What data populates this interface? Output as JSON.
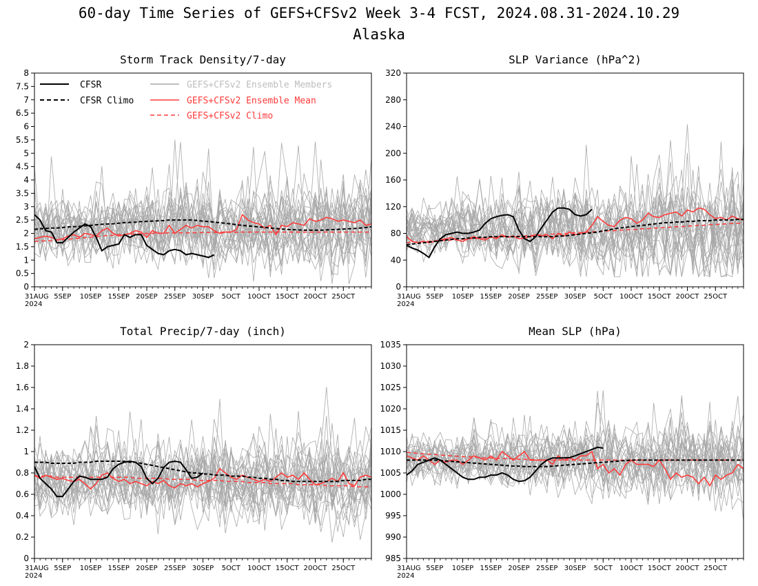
{
  "figure": {
    "title_line1": "60-day Time Series of GEFS+CFSv2 Week 3-4 FCST, 2024.08.31-2024.10.29",
    "title_line2": "Alaska"
  },
  "legend": {
    "cfsr": "CFSR",
    "cfsr_climo": "CFSR Climo",
    "members": "GEFS+CFSv2 Ensemble Members",
    "mean": "GEFS+CFSv2 Ensemble Mean",
    "climo": "GEFS+CFSv2 Climo"
  },
  "colors": {
    "cfsr": "#000000",
    "members": "#a8a8a8",
    "mean": "#ff3b3b",
    "members_legend_text": "#bdbdbd"
  },
  "x_axis": {
    "ticks": [
      "31AUG",
      "5SEP",
      "10SEP",
      "15SEP",
      "20SEP",
      "25SEP",
      "30SEP",
      "5OCT",
      "10OCT",
      "15OCT",
      "20OCT",
      "25OCT"
    ],
    "year": "2024"
  },
  "chart_data": [
    {
      "type": "line",
      "title": "Storm Track Density/7-day",
      "ylim": [
        0,
        8
      ],
      "yticks": [
        "0",
        "0.5",
        "1",
        "1.5",
        "2",
        "2.5",
        "3",
        "3.5",
        "4",
        "4.5",
        "5",
        "5.5",
        "6",
        "6.5",
        "7",
        "7.5",
        "8"
      ],
      "ensemble_mean": [
        1.8,
        1.85,
        1.9,
        1.85,
        1.75,
        1.8,
        1.9,
        1.95,
        1.85,
        2.0,
        1.95,
        1.9,
        2.1,
        2.2,
        2.0,
        1.9,
        1.95,
        2.0,
        2.1,
        2.05,
        1.85,
        2.1,
        2.0,
        2.0,
        2.3,
        2.0,
        2.15,
        2.3,
        2.2,
        2.3,
        2.25,
        2.25,
        2.1,
        2.0,
        2.05,
        2.05,
        2.15,
        2.7,
        2.5,
        2.4,
        2.35,
        2.2,
        2.3,
        1.95,
        2.3,
        2.25,
        2.4,
        2.35,
        2.3,
        2.55,
        2.45,
        2.5,
        2.6,
        2.55,
        2.45,
        2.5,
        2.45,
        2.4,
        2.5,
        2.3,
        2.35
      ],
      "cfsr": [
        2.7,
        2.5,
        2.1,
        2.05,
        1.65,
        1.65,
        1.85,
        2.05,
        2.2,
        2.35,
        2.25,
        1.85,
        1.35,
        1.5,
        1.55,
        1.6,
        1.95,
        1.85,
        1.95,
        1.95,
        1.55,
        1.4,
        1.25,
        1.2,
        1.35,
        1.4,
        1.35,
        1.2,
        1.25,
        1.2,
        1.15,
        1.1,
        1.2
      ],
      "cfsr_climo": [
        2.15,
        2.17,
        2.18,
        2.2,
        2.2,
        2.22,
        2.24,
        2.25,
        2.26,
        2.28,
        2.3,
        2.32,
        2.34,
        2.35,
        2.36,
        2.38,
        2.4,
        2.41,
        2.42,
        2.44,
        2.45,
        2.46,
        2.47,
        2.48,
        2.5,
        2.5,
        2.5,
        2.5,
        2.5,
        2.48,
        2.46,
        2.44,
        2.42,
        2.4,
        2.38,
        2.35,
        2.32,
        2.3,
        2.28,
        2.26,
        2.24,
        2.22,
        2.2,
        2.18,
        2.16,
        2.15,
        2.14,
        2.13,
        2.12,
        2.12,
        2.12,
        2.12,
        2.13,
        2.14,
        2.15,
        2.16,
        2.17,
        2.18,
        2.2,
        2.22,
        2.25
      ],
      "model_climo": [
        1.7,
        1.71,
        1.72,
        1.73,
        1.75,
        1.76,
        1.78,
        1.8,
        1.82,
        1.84,
        1.86,
        1.88,
        1.9,
        1.92,
        1.93,
        1.95,
        1.96,
        1.97,
        1.98,
        1.99,
        2.0,
        2.0,
        2.01,
        2.01,
        2.02,
        2.02,
        2.02,
        2.02,
        2.02,
        2.03,
        2.03,
        2.03,
        2.03,
        2.04,
        2.04,
        2.04,
        2.04,
        2.05,
        2.05,
        2.05,
        2.05,
        2.05,
        2.05,
        2.05,
        2.05,
        2.05,
        2.05,
        2.05,
        2.05,
        2.05,
        2.05,
        2.05,
        2.05,
        2.05,
        2.05,
        2.05,
        2.05,
        2.05,
        2.05,
        2.05,
        2.05
      ],
      "members_base": 2.1,
      "members_spread": 0.75,
      "members_spread_growth": 0.45,
      "members_floor": 0
    },
    {
      "type": "line",
      "title": "SLP Variance (hPa^2)",
      "ylim": [
        0,
        320
      ],
      "yticks": [
        "0",
        "40",
        "80",
        "120",
        "160",
        "200",
        "240",
        "280",
        "320"
      ],
      "ensemble_mean": [
        75,
        68,
        66,
        68,
        66,
        68,
        70,
        72,
        74,
        70,
        68,
        72,
        75,
        72,
        70,
        75,
        72,
        78,
        74,
        76,
        72,
        73,
        75,
        78,
        76,
        78,
        72,
        80,
        76,
        82,
        78,
        80,
        82,
        92,
        105,
        98,
        92,
        90,
        100,
        104,
        102,
        95,
        100,
        110,
        105,
        104,
        108,
        110,
        112,
        106,
        115,
        112,
        118,
        116,
        108,
        102,
        104,
        100,
        106,
        102,
        100
      ],
      "cfsr": [
        62,
        58,
        55,
        50,
        44,
        60,
        72,
        78,
        80,
        82,
        80,
        80,
        82,
        85,
        95,
        102,
        105,
        107,
        108,
        105,
        85,
        72,
        68,
        75,
        88,
        100,
        112,
        118,
        118,
        116,
        108,
        106,
        108,
        116
      ],
      "cfsr_climo": [
        63,
        64,
        65,
        66,
        67,
        68,
        69,
        70,
        71,
        72,
        72,
        73,
        73,
        74,
        74,
        75,
        75,
        75,
        75,
        75,
        75,
        75,
        75,
        75,
        75,
        75,
        75,
        76,
        76,
        77,
        78,
        79,
        80,
        81,
        82,
        84,
        85,
        87,
        88,
        89,
        90,
        91,
        92,
        93,
        94,
        95,
        96,
        96,
        97,
        97,
        98,
        98,
        99,
        99,
        99,
        100,
        100,
        100,
        100,
        101,
        101
      ],
      "model_climo": [
        66,
        67,
        67,
        68,
        68,
        69,
        69,
        70,
        70,
        71,
        71,
        72,
        72,
        73,
        73,
        74,
        74,
        75,
        75,
        75,
        76,
        76,
        77,
        77,
        78,
        78,
        79,
        79,
        80,
        80,
        81,
        81,
        82,
        82,
        83,
        83,
        84,
        84,
        85,
        85,
        86,
        86,
        87,
        87,
        88,
        88,
        89,
        89,
        90,
        90,
        91,
        91,
        92,
        92,
        93,
        93,
        94,
        94,
        95,
        95,
        96
      ],
      "members_base": 85,
      "members_spread": 25,
      "members_spread_growth": 35,
      "members_floor": 15
    },
    {
      "type": "line",
      "title": "Total Precip/7-day (inch)",
      "ylim": [
        0,
        2
      ],
      "yticks": [
        "0",
        "0.2",
        "0.4",
        "0.6",
        "0.8",
        "1",
        "1.2",
        "1.4",
        "1.6",
        "1.8",
        "2"
      ],
      "ensemble_mean": [
        0.78,
        0.75,
        0.78,
        0.76,
        0.74,
        0.75,
        0.73,
        0.72,
        0.74,
        0.7,
        0.65,
        0.7,
        0.78,
        0.8,
        0.75,
        0.72,
        0.74,
        0.7,
        0.72,
        0.7,
        0.68,
        0.72,
        0.7,
        0.73,
        0.68,
        0.66,
        0.7,
        0.68,
        0.7,
        0.67,
        0.7,
        0.72,
        0.75,
        0.84,
        0.8,
        0.76,
        0.74,
        0.78,
        0.76,
        0.74,
        0.72,
        0.74,
        0.72,
        0.76,
        0.8,
        0.76,
        0.78,
        0.74,
        0.8,
        0.74,
        0.69,
        0.7,
        0.72,
        0.75,
        0.72,
        0.8,
        0.7,
        0.68,
        0.76,
        0.78,
        0.76
      ],
      "cfsr": [
        0.86,
        0.75,
        0.7,
        0.65,
        0.58,
        0.58,
        0.65,
        0.72,
        0.77,
        0.76,
        0.74,
        0.74,
        0.74,
        0.76,
        0.84,
        0.88,
        0.9,
        0.91,
        0.9,
        0.86,
        0.75,
        0.7,
        0.75,
        0.85,
        0.9,
        0.91,
        0.9,
        0.83,
        0.75,
        0.76,
        0.8
      ],
      "cfsr_climo": [
        0.9,
        0.9,
        0.9,
        0.89,
        0.89,
        0.89,
        0.89,
        0.89,
        0.9,
        0.9,
        0.9,
        0.91,
        0.91,
        0.91,
        0.91,
        0.91,
        0.91,
        0.9,
        0.9,
        0.89,
        0.88,
        0.87,
        0.86,
        0.85,
        0.84,
        0.83,
        0.82,
        0.81,
        0.8,
        0.8,
        0.79,
        0.79,
        0.78,
        0.78,
        0.78,
        0.77,
        0.77,
        0.77,
        0.76,
        0.76,
        0.75,
        0.75,
        0.74,
        0.74,
        0.73,
        0.73,
        0.72,
        0.72,
        0.72,
        0.72,
        0.72,
        0.72,
        0.72,
        0.72,
        0.72,
        0.73,
        0.73,
        0.73,
        0.73,
        0.74,
        0.74
      ],
      "model_climo": [
        0.77,
        0.77,
        0.77,
        0.77,
        0.76,
        0.76,
        0.76,
        0.76,
        0.76,
        0.76,
        0.76,
        0.76,
        0.76,
        0.76,
        0.76,
        0.76,
        0.76,
        0.76,
        0.75,
        0.75,
        0.75,
        0.75,
        0.75,
        0.75,
        0.74,
        0.74,
        0.74,
        0.74,
        0.74,
        0.73,
        0.73,
        0.73,
        0.73,
        0.73,
        0.72,
        0.72,
        0.72,
        0.72,
        0.71,
        0.71,
        0.71,
        0.71,
        0.7,
        0.7,
        0.7,
        0.7,
        0.7,
        0.69,
        0.69,
        0.69,
        0.69,
        0.69,
        0.68,
        0.68,
        0.68,
        0.68,
        0.68,
        0.67,
        0.67,
        0.67,
        0.67
      ],
      "members_base": 0.74,
      "members_spread": 0.22,
      "members_spread_growth": 0.06,
      "members_floor": 0.1
    },
    {
      "type": "line",
      "title": "Mean SLP (hPa)",
      "ylim": [
        985,
        1035
      ],
      "yticks": [
        "985",
        "990",
        "995",
        "1000",
        "1005",
        "1010",
        "1015",
        "1020",
        "1025",
        "1030",
        "1035"
      ],
      "ensemble_mean": [
        1009,
        1008.5,
        1008,
        1009,
        1008,
        1007,
        1008,
        1007.5,
        1008,
        1008,
        1007,
        1008,
        1009,
        1008.5,
        1008,
        1009,
        1008,
        1010,
        1009,
        1008,
        1009,
        1010,
        1008,
        1008,
        1008,
        1008,
        1007,
        1009,
        1008,
        1008.5,
        1008,
        1009,
        1009,
        1010,
        1006,
        1007,
        1005,
        1006,
        1004.5,
        1007,
        1008,
        1007,
        1007,
        1007,
        1006.5,
        1008,
        1006,
        1003.5,
        1005,
        1004,
        1004.5,
        1004,
        1002.5,
        1004,
        1002,
        1004.5,
        1003.5,
        1004.5,
        1005,
        1007,
        1006
      ],
      "cfsr": [
        1004.5,
        1005.5,
        1007,
        1007.5,
        1008,
        1008.5,
        1008,
        1007,
        1006,
        1005,
        1004,
        1003.5,
        1003.5,
        1004,
        1004,
        1004.5,
        1004.5,
        1005,
        1004.5,
        1003.5,
        1003,
        1003.2,
        1004,
        1005.5,
        1007,
        1008,
        1008.5,
        1008.5,
        1008.5,
        1008.6,
        1009,
        1009.5,
        1010,
        1010.5,
        1011,
        1010.8
      ],
      "cfsr_climo": [
        1008,
        1008,
        1008,
        1008,
        1008,
        1008,
        1007.9,
        1007.8,
        1007.7,
        1007.6,
        1007.5,
        1007.4,
        1007.3,
        1007.2,
        1007.1,
        1007,
        1006.9,
        1006.8,
        1006.7,
        1006.6,
        1006.6,
        1006.5,
        1006.5,
        1006.5,
        1006.5,
        1006.5,
        1006.6,
        1006.7,
        1006.8,
        1006.9,
        1007,
        1007.1,
        1007.2,
        1007.3,
        1007.4,
        1007.5,
        1007.6,
        1007.7,
        1007.8,
        1007.9,
        1008,
        1008,
        1008,
        1008,
        1008,
        1008,
        1008,
        1008,
        1008,
        1008,
        1008,
        1008,
        1008,
        1008,
        1008,
        1008,
        1008,
        1008,
        1008,
        1008,
        1008
      ],
      "model_climo": [
        1009.8,
        1009.7,
        1009.6,
        1009.5,
        1009.4,
        1009.3,
        1009.2,
        1009.1,
        1009,
        1008.9,
        1008.8,
        1008.8,
        1008.7,
        1008.6,
        1008.5,
        1008.5,
        1008.4,
        1008.4,
        1008.3,
        1008.3,
        1008.2,
        1008.2,
        1008.1,
        1008.1,
        1008,
        1008,
        1008,
        1008,
        1008,
        1008,
        1008,
        1008,
        1008,
        1008,
        1008,
        1008,
        1008,
        1008,
        1008,
        1008,
        1008,
        1008,
        1008,
        1008,
        1008,
        1008,
        1008,
        1008,
        1008,
        1008,
        1008,
        1008,
        1008,
        1008,
        1008,
        1008,
        1008,
        1008,
        1008,
        1008,
        1008
      ],
      "members_base": 1008,
      "members_spread": 3.5,
      "members_spread_growth": 3.5,
      "members_floor": 985
    }
  ]
}
